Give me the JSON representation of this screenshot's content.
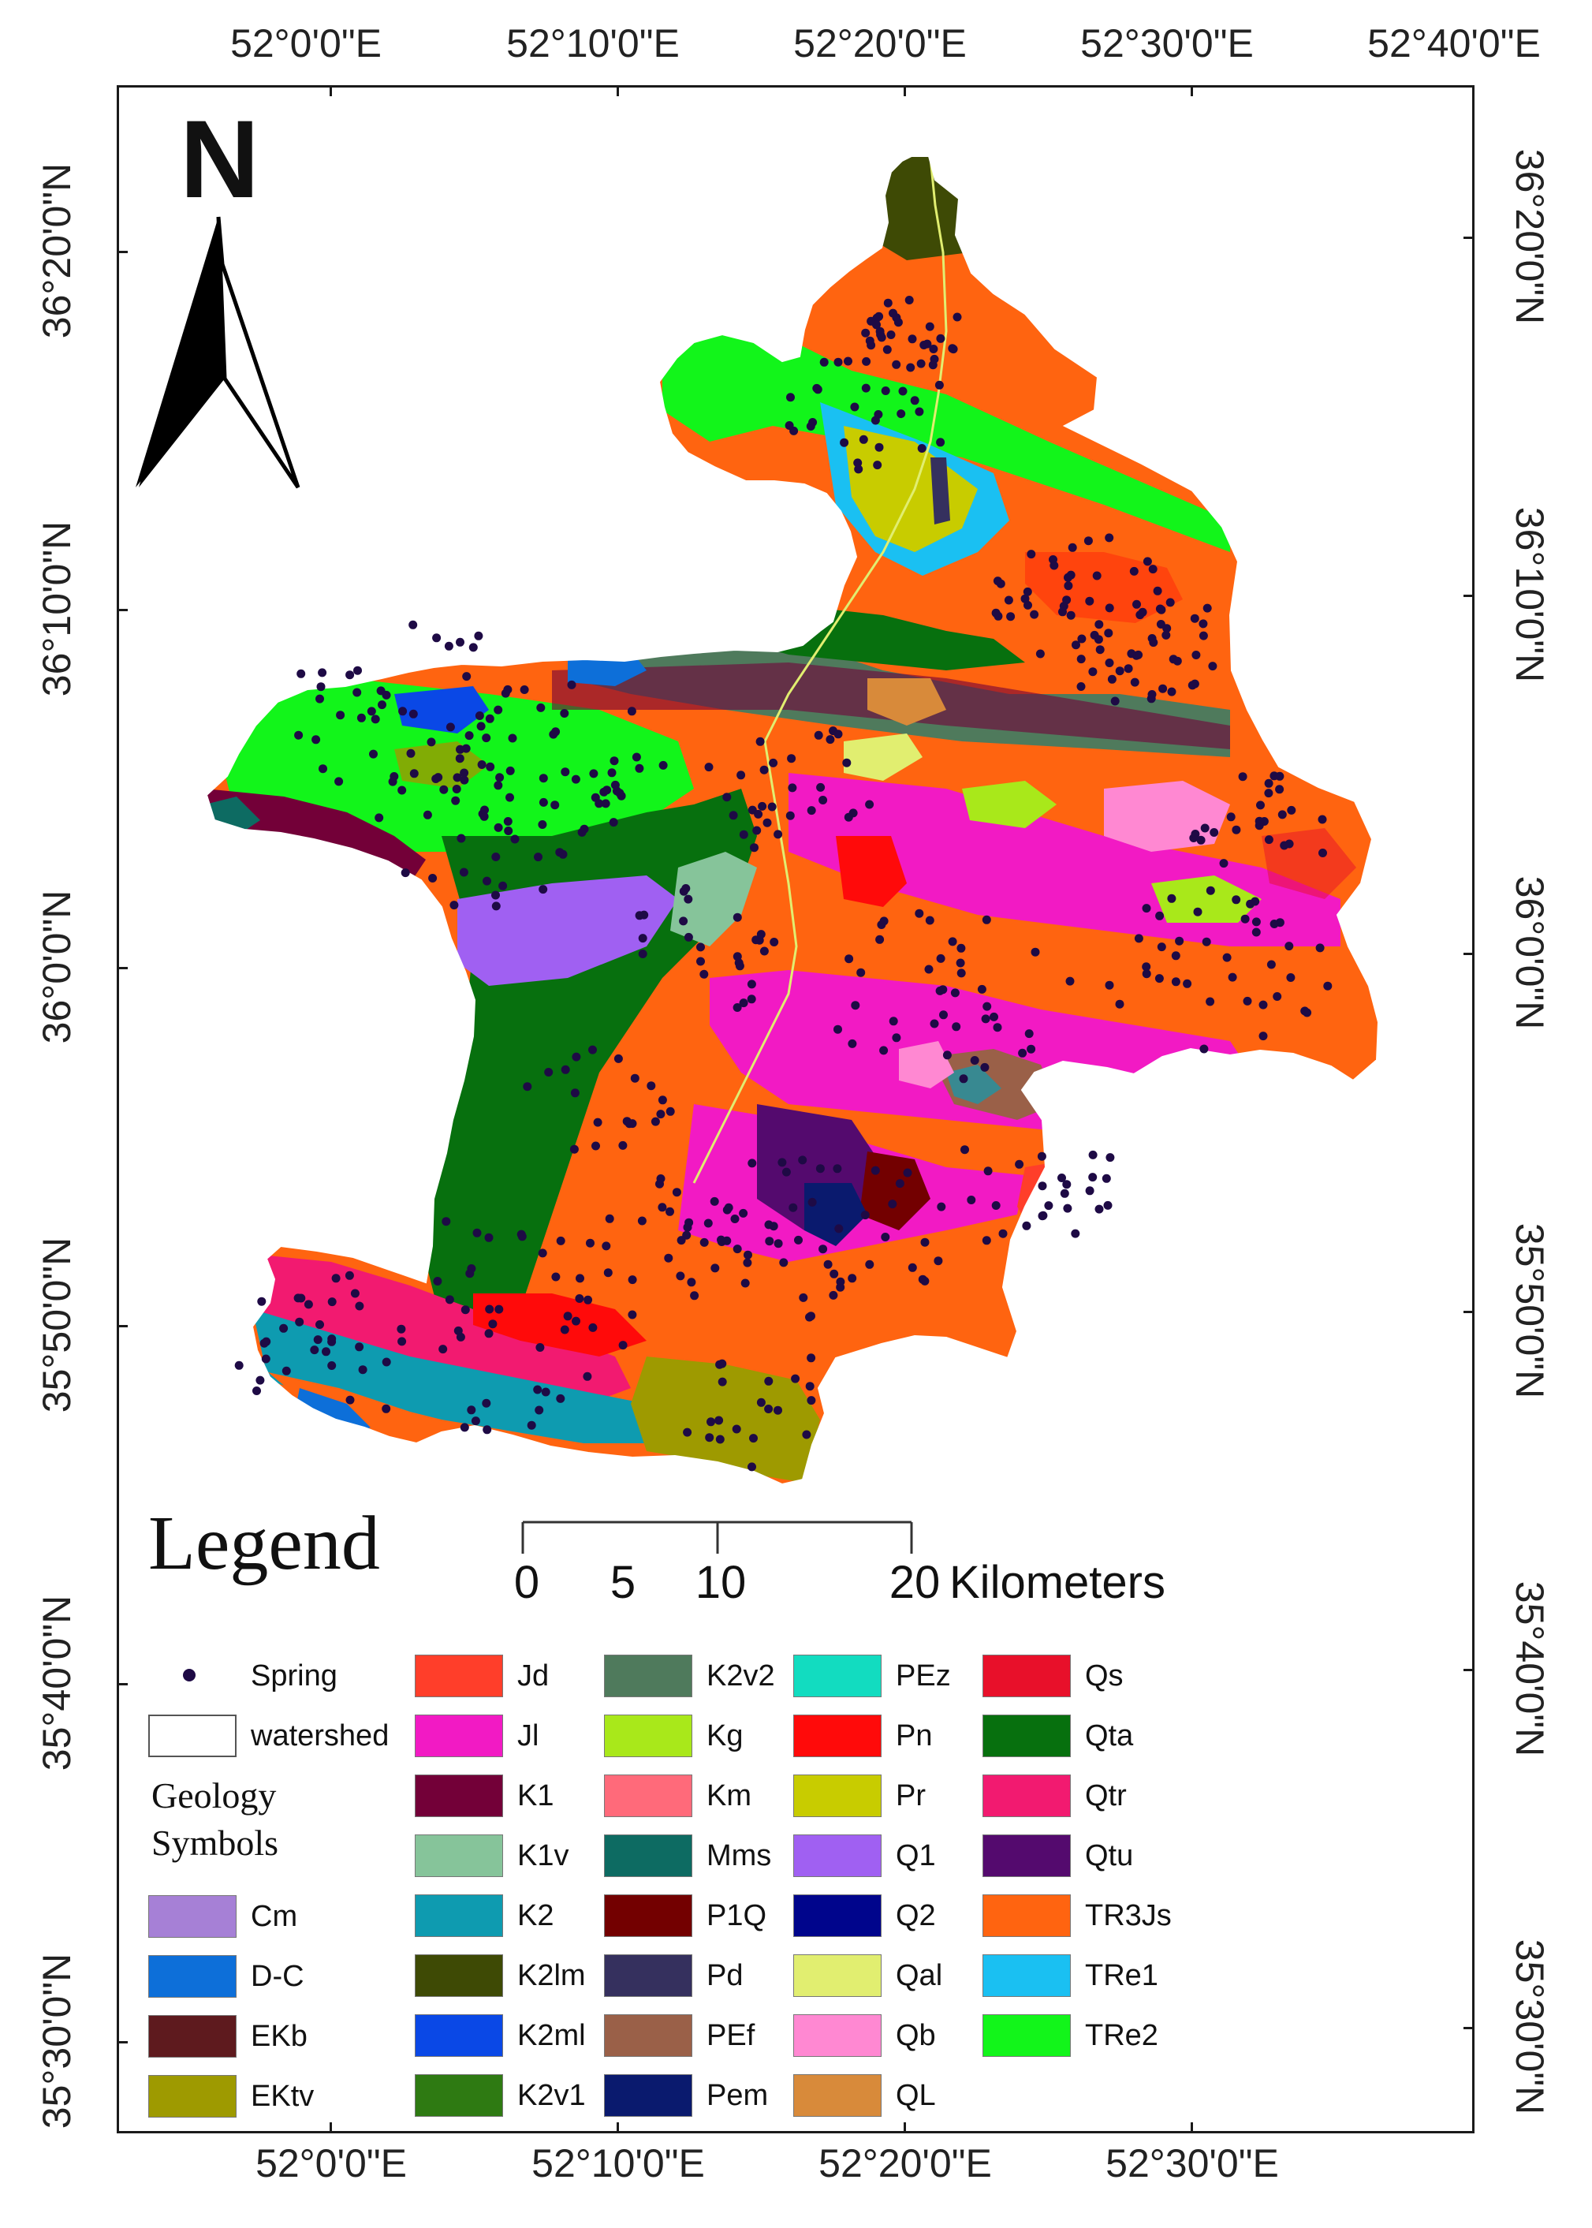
{
  "map": {
    "north_label": "N",
    "legend_title": "Legend",
    "geology_heading_line1": "Geology",
    "geology_heading_line2": "Symbols",
    "scale": {
      "labels": [
        "0",
        "5",
        "10",
        "20"
      ],
      "unit": "Kilometers"
    },
    "graticule": {
      "top": [
        "52°0'0\"E",
        "52°10'0\"E",
        "52°20'0\"E",
        "52°30'0\"E",
        "52°40'0\"E"
      ],
      "bottom": [
        "52°0'0\"E",
        "52°10'0\"E",
        "52°20'0\"E",
        "52°30'0\"E"
      ],
      "left": [
        "36°20'0\"N",
        "36°10'0\"N",
        "36°0'0\"N",
        "35°50'0\"N",
        "35°40'0\"N",
        "35°30'0\"N"
      ],
      "right": [
        "36°20'0\"N",
        "36°10'0\"N",
        "36°0'0\"N",
        "35°50'0\"N",
        "35°40'0\"N",
        "35°30'0\"N"
      ]
    },
    "legend_basic": [
      {
        "label": "Spring",
        "symbol": "dot",
        "color": "#1e0a45"
      },
      {
        "label": "watershed",
        "symbol": "outline",
        "color": "#ffffff"
      }
    ],
    "legend_geology": [
      {
        "label": "Cm",
        "color": "#a680d6"
      },
      {
        "label": "D-C",
        "color": "#0d6fd9"
      },
      {
        "label": "EKb",
        "color": "#5e1a1e"
      },
      {
        "label": "EKtv",
        "color": "#9e9a00"
      },
      {
        "label": "Jd",
        "color": "#ff3e2a"
      },
      {
        "label": "Jl",
        "color": "#f21ac4"
      },
      {
        "label": "K1",
        "color": "#730038"
      },
      {
        "label": "K1v",
        "color": "#86c49a"
      },
      {
        "label": "K2",
        "color": "#0e9bb0"
      },
      {
        "label": "K2lm",
        "color": "#3e4a05"
      },
      {
        "label": "K2ml",
        "color": "#0a48e6"
      },
      {
        "label": "K2v1",
        "color": "#2e7a12"
      },
      {
        "label": "K2v2",
        "color": "#4f7a5c"
      },
      {
        "label": "Kg",
        "color": "#a9e81a"
      },
      {
        "label": "Km",
        "color": "#ff6a7a"
      },
      {
        "label": "Mms",
        "color": "#0d6b62"
      },
      {
        "label": "P1Q",
        "color": "#730000"
      },
      {
        "label": "Pd",
        "color": "#35305e"
      },
      {
        "label": "PEf",
        "color": "#9a6048"
      },
      {
        "label": "Pem",
        "color": "#0a1a6e"
      },
      {
        "label": "PEz",
        "color": "#12dcc0"
      },
      {
        "label": "Pn",
        "color": "#ff0a0a"
      },
      {
        "label": "Pr",
        "color": "#c8cc00"
      },
      {
        "label": "Q1",
        "color": "#a060f2"
      },
      {
        "label": "Q2",
        "color": "#00058c"
      },
      {
        "label": "Qal",
        "color": "#e1ee70"
      },
      {
        "label": "Qb",
        "color": "#ff88d2"
      },
      {
        "label": "QL",
        "color": "#d88a3a"
      },
      {
        "label": "Qs",
        "color": "#e8102a"
      },
      {
        "label": "Qta",
        "color": "#07700e"
      },
      {
        "label": "Qtr",
        "color": "#f21a70"
      },
      {
        "label": "Qtu",
        "color": "#540a6e"
      },
      {
        "label": "TR3Js",
        "color": "#ff6410"
      },
      {
        "label": "TRe1",
        "color": "#1ac0f2"
      },
      {
        "label": "TRe2",
        "color": "#12f51a"
      }
    ]
  }
}
